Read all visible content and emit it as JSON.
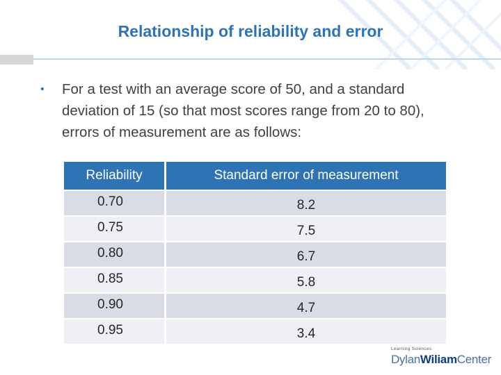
{
  "slide": {
    "title": "Relationship of reliability and error",
    "bullet": "For a test with an average score of 50, and a standard deviation of 15 (so that most scores range from 20 to 80), errors of measurement are as follows:",
    "bullet_marker": "•"
  },
  "table": {
    "headers": [
      "Reliability",
      "Standard error of measurement"
    ],
    "rows": [
      [
        "0.70",
        "8.2"
      ],
      [
        "0.75",
        "7.5"
      ],
      [
        "0.80",
        "6.7"
      ],
      [
        "0.85",
        "5.8"
      ],
      [
        "0.90",
        "4.7"
      ],
      [
        "0.95",
        "3.4"
      ]
    ]
  },
  "logo": {
    "small_text": "Learning Sciences",
    "name_part1": "Dylan",
    "name_part2": "Wiliam",
    "name_part3": "Center"
  },
  "colors": {
    "title": "#2e74b5",
    "header_fill": "#2e74b5",
    "row_dark": "#d9dce4",
    "row_light": "#eef0f4"
  }
}
